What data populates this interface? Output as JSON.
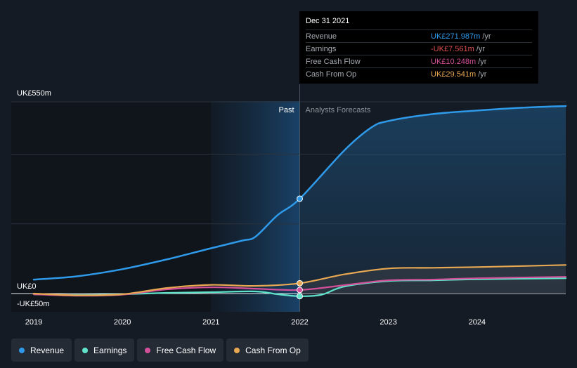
{
  "chart_data": {
    "type": "line",
    "y_axis": {
      "top_label": "UK£550m",
      "zero_label": "UK£0",
      "bottom_label": "-UK£50m",
      "ylim": [
        -50,
        550
      ],
      "ticks": [
        550,
        0,
        -50
      ]
    },
    "x_axis": {
      "ticks": [
        "2019",
        "2020",
        "2021",
        "2022",
        "2023",
        "2024"
      ],
      "xlim": [
        2019,
        2025
      ]
    },
    "regions": {
      "past_label": "Past",
      "forecast_label": "Analysts Forecasts",
      "divider_x": 2022
    },
    "series": [
      {
        "name": "Revenue",
        "color": "#2f9ae9",
        "fill": true,
        "points": [
          [
            2019.0,
            40
          ],
          [
            2019.5,
            50
          ],
          [
            2020.0,
            70
          ],
          [
            2020.5,
            98
          ],
          [
            2021.0,
            130
          ],
          [
            2021.35,
            152
          ],
          [
            2021.5,
            163
          ],
          [
            2021.75,
            225
          ],
          [
            2022.0,
            272
          ],
          [
            2022.5,
            410
          ],
          [
            2022.8,
            475
          ],
          [
            2023.0,
            495
          ],
          [
            2023.5,
            515
          ],
          [
            2024.0,
            525
          ],
          [
            2024.5,
            533
          ],
          [
            2025.0,
            538
          ]
        ]
      },
      {
        "name": "Earnings",
        "color": "#5fe3cb",
        "fill": false,
        "points": [
          [
            2019.0,
            -2
          ],
          [
            2019.5,
            -4
          ],
          [
            2020.0,
            -2
          ],
          [
            2020.5,
            2
          ],
          [
            2021.0,
            4
          ],
          [
            2021.5,
            6
          ],
          [
            2021.75,
            -2
          ],
          [
            2022.0,
            -7.561
          ],
          [
            2022.25,
            -3
          ],
          [
            2022.5,
            20
          ],
          [
            2023.0,
            36
          ],
          [
            2023.5,
            38
          ],
          [
            2024.0,
            41
          ],
          [
            2025.0,
            44
          ]
        ]
      },
      {
        "name": "Free Cash Flow",
        "color": "#d4509a",
        "fill": false,
        "points": [
          [
            2019.0,
            -2
          ],
          [
            2019.5,
            -6
          ],
          [
            2020.0,
            -3
          ],
          [
            2020.5,
            12
          ],
          [
            2021.0,
            18
          ],
          [
            2021.5,
            14
          ],
          [
            2022.0,
            10.248
          ],
          [
            2022.5,
            24
          ],
          [
            2023.0,
            38
          ],
          [
            2023.5,
            40
          ],
          [
            2024.0,
            44
          ],
          [
            2025.0,
            48
          ]
        ]
      },
      {
        "name": "Cash From Op",
        "color": "#e8a852",
        "fill": false,
        "points": [
          [
            2019.0,
            0
          ],
          [
            2019.5,
            -5
          ],
          [
            2020.0,
            -2
          ],
          [
            2020.5,
            16
          ],
          [
            2021.0,
            25
          ],
          [
            2021.5,
            22
          ],
          [
            2022.0,
            29.541
          ],
          [
            2022.5,
            55
          ],
          [
            2023.0,
            72
          ],
          [
            2023.5,
            74
          ],
          [
            2024.0,
            76
          ],
          [
            2025.0,
            82
          ]
        ]
      }
    ],
    "highlight_x": 2022,
    "grid": true,
    "legend_position": "bottom-left"
  },
  "tooltip": {
    "date": "Dec 31 2021",
    "unit": "/yr",
    "rows": [
      {
        "name": "Revenue",
        "value": "UK£271.987m",
        "color": "#2f9ae9"
      },
      {
        "name": "Earnings",
        "value": "-UK£7.561m",
        "color": "#e05050"
      },
      {
        "name": "Free Cash Flow",
        "value": "UK£10.248m",
        "color": "#d4509a"
      },
      {
        "name": "Cash From Op",
        "value": "UK£29.541m",
        "color": "#e8a852"
      }
    ]
  },
  "legend": [
    {
      "label": "Revenue",
      "color": "#2f9ae9"
    },
    {
      "label": "Earnings",
      "color": "#5fe3cb"
    },
    {
      "label": "Free Cash Flow",
      "color": "#d4509a"
    },
    {
      "label": "Cash From Op",
      "color": "#e8a852"
    }
  ]
}
